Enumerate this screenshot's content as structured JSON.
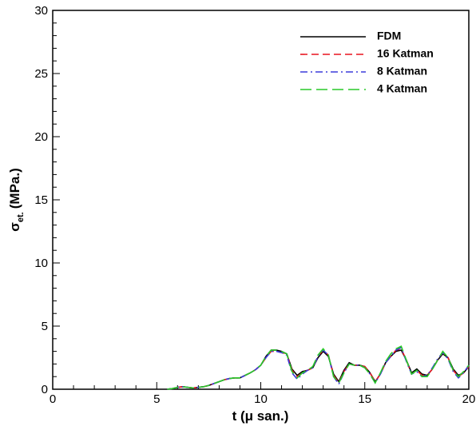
{
  "chart_data": {
    "type": "line",
    "xlabel": "t (μ san.)",
    "ylabel": {
      "symbol": "σ",
      "subscript": "et.",
      "unit": "(MPa.)"
    },
    "x": [
      5.5,
      5.75,
      6,
      6.25,
      6.5,
      6.75,
      7,
      7.25,
      7.5,
      7.75,
      8,
      8.25,
      8.5,
      8.75,
      9,
      9.25,
      9.5,
      9.75,
      10,
      10.25,
      10.5,
      10.75,
      11,
      11.25,
      11.5,
      11.75,
      12,
      12.25,
      12.5,
      12.75,
      13,
      13.25,
      13.5,
      13.75,
      14,
      14.25,
      14.5,
      14.75,
      15,
      15.25,
      15.5,
      15.75,
      16,
      16.25,
      16.5,
      16.75,
      17,
      17.25,
      17.5,
      17.75,
      18,
      18.25,
      18.5,
      18.75,
      19,
      19.25,
      19.5,
      19.75,
      20
    ],
    "series": [
      {
        "name": "FDM",
        "color": "#000000",
        "dash": "solid",
        "values": [
          0,
          0.05,
          0.15,
          0.2,
          0.15,
          0.1,
          0.15,
          0.2,
          0.3,
          0.45,
          0.6,
          0.75,
          0.85,
          0.9,
          0.9,
          1.1,
          1.3,
          1.55,
          1.9,
          2.6,
          3.1,
          3.1,
          3.0,
          2.8,
          1.6,
          1.1,
          1.4,
          1.5,
          1.7,
          2.5,
          3.0,
          2.6,
          1.2,
          0.6,
          1.5,
          2.1,
          1.9,
          1.9,
          1.8,
          1.3,
          0.6,
          1.2,
          2.1,
          2.6,
          3.0,
          3.1,
          2.3,
          1.3,
          1.6,
          1.2,
          1.1,
          1.6,
          2.3,
          2.8,
          2.5,
          1.6,
          1.1,
          1.3,
          1.8
        ]
      },
      {
        "name": "16 Katman",
        "color": "#e8141e",
        "dash": "dashed",
        "values": [
          0,
          0.05,
          0.15,
          0.2,
          0.15,
          0.1,
          0.15,
          0.2,
          0.3,
          0.45,
          0.6,
          0.75,
          0.85,
          0.9,
          0.9,
          1.1,
          1.3,
          1.55,
          1.9,
          2.5,
          3.0,
          3.0,
          2.9,
          2.8,
          1.5,
          1.0,
          1.3,
          1.5,
          1.7,
          2.6,
          3.1,
          2.7,
          1.1,
          0.5,
          1.4,
          2.0,
          1.9,
          1.9,
          1.8,
          1.3,
          0.6,
          1.2,
          2.1,
          2.6,
          3.1,
          3.2,
          2.3,
          1.2,
          1.5,
          1.1,
          1.1,
          1.6,
          2.3,
          2.9,
          2.5,
          1.5,
          1.0,
          1.3,
          1.8
        ]
      },
      {
        "name": "8 Katman",
        "color": "#3c3cdc",
        "dash": "dashdot",
        "values": [
          0,
          0.05,
          0.15,
          0.2,
          0.15,
          0.1,
          0.15,
          0.2,
          0.3,
          0.45,
          0.6,
          0.75,
          0.85,
          0.9,
          0.9,
          1.1,
          1.3,
          1.55,
          1.9,
          2.5,
          3.0,
          3.0,
          2.9,
          2.7,
          1.3,
          0.8,
          1.2,
          1.5,
          1.7,
          2.6,
          3.1,
          2.7,
          1.0,
          0.4,
          1.3,
          2.0,
          1.9,
          1.9,
          1.7,
          1.2,
          0.5,
          1.2,
          2.1,
          2.6,
          3.1,
          3.3,
          2.2,
          1.2,
          1.4,
          1.0,
          1.1,
          1.7,
          2.4,
          2.9,
          2.4,
          1.4,
          0.9,
          1.3,
          1.9
        ]
      },
      {
        "name": "4 Katman",
        "color": "#28c828",
        "dash": "longdash",
        "values": [
          0,
          0.05,
          0.15,
          0.2,
          0.15,
          0.1,
          0.15,
          0.2,
          0.3,
          0.45,
          0.6,
          0.75,
          0.85,
          0.9,
          0.9,
          1.1,
          1.3,
          1.55,
          1.9,
          2.6,
          3.1,
          3.1,
          3.0,
          2.8,
          1.4,
          0.9,
          1.3,
          1.5,
          1.8,
          2.7,
          3.2,
          2.7,
          1.0,
          0.5,
          1.3,
          2.0,
          1.9,
          1.9,
          1.7,
          1.2,
          0.5,
          1.3,
          2.2,
          2.8,
          3.2,
          3.4,
          2.3,
          1.2,
          1.5,
          1.0,
          1.0,
          1.6,
          2.3,
          3.0,
          2.5,
          1.5,
          1.0,
          1.4,
          1.9
        ]
      }
    ],
    "xlim": [
      0,
      20
    ],
    "ylim": [
      0,
      30
    ],
    "xticks": [
      0,
      5,
      10,
      15,
      20
    ],
    "yticks": [
      0,
      5,
      10,
      15,
      20,
      25,
      30
    ],
    "xminorticks": [
      1,
      2,
      3,
      4,
      6,
      7,
      8,
      9,
      11,
      12,
      13,
      14,
      16,
      17,
      18,
      19
    ],
    "yminorticks": [
      1,
      2,
      3,
      4,
      6,
      7,
      8,
      9,
      11,
      12,
      13,
      14,
      16,
      17,
      18,
      19,
      21,
      22,
      23,
      24,
      26,
      27,
      28,
      29
    ],
    "grid": false,
    "legend": "top-right"
  }
}
